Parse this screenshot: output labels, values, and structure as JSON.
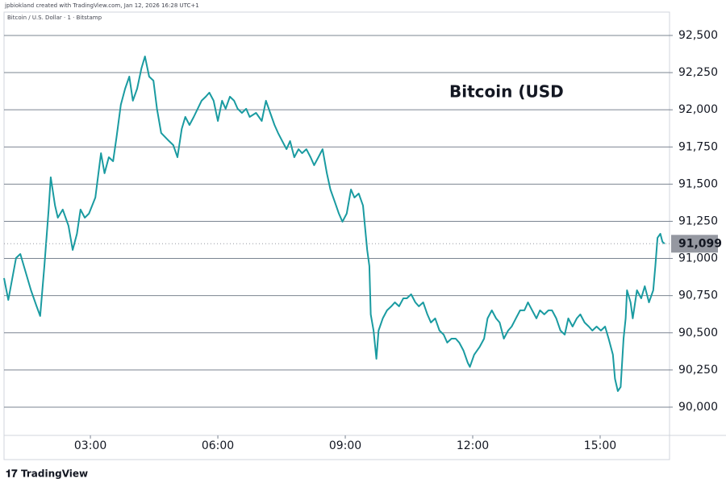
{
  "header": "jpbiokland created with TradingView.com, Jan 12, 2026 16:28 UTC+1",
  "symbol": "Bitcoin / U.S. Dollar · 1 · Bitstamp",
  "footer": "TradingView",
  "chart_data": {
    "type": "line",
    "title": "Bitcoin (USD",
    "color": "#1a9ba1",
    "grid": true,
    "xlim": [
      58,
      998
    ],
    "ylim": [
      89810,
      92657
    ],
    "xticks": [
      {
        "value": 180,
        "label": "03:00"
      },
      {
        "value": 360,
        "label": "06:00"
      },
      {
        "value": 540,
        "label": "09:00"
      },
      {
        "value": 720,
        "label": "12:00"
      },
      {
        "value": 900,
        "label": "15:00"
      }
    ],
    "yticks": [
      {
        "value": 90000,
        "label": "90,000"
      },
      {
        "value": 90250,
        "label": "90,250"
      },
      {
        "value": 90500,
        "label": "90,500"
      },
      {
        "value": 90750,
        "label": "90,750"
      },
      {
        "value": 91000,
        "label": "91,000"
      },
      {
        "value": 91250,
        "label": "91,250"
      },
      {
        "value": 91500,
        "label": "91,500"
      },
      {
        "value": 91750,
        "label": "91,750"
      },
      {
        "value": 92000,
        "label": "92,000"
      },
      {
        "value": 92250,
        "label": "92,250"
      },
      {
        "value": 92500,
        "label": "92,500"
      }
    ],
    "last_price": {
      "value": 91099,
      "label": "91,099"
    },
    "x": [
      58,
      64,
      75,
      81,
      86,
      96,
      104,
      109,
      115,
      121,
      124,
      130,
      134,
      141,
      149,
      155,
      161,
      166,
      172,
      178,
      187,
      195,
      200,
      206,
      212,
      217,
      223,
      229,
      235,
      240,
      246,
      252,
      257,
      263,
      269,
      274,
      280,
      291,
      297,
      303,
      309,
      314,
      320,
      326,
      337,
      343,
      348,
      354,
      360,
      366,
      371,
      377,
      383,
      388,
      394,
      400,
      405,
      414,
      422,
      428,
      434,
      440,
      445,
      451,
      457,
      462,
      468,
      474,
      479,
      485,
      491,
      496,
      502,
      508,
      514,
      519,
      525,
      531,
      536,
      542,
      548,
      553,
      559,
      565,
      571,
      574,
      576,
      580,
      584,
      587,
      593,
      599,
      605,
      610,
      616,
      622,
      627,
      633,
      639,
      644,
      650,
      656,
      661,
      667,
      673,
      679,
      684,
      690,
      696,
      701,
      707,
      713,
      716,
      722,
      730,
      736,
      741,
      747,
      753,
      758,
      764,
      770,
      775,
      781,
      787,
      793,
      798,
      804,
      810,
      815,
      821,
      827,
      832,
      838,
      844,
      850,
      855,
      861,
      867,
      872,
      878,
      884,
      889,
      895,
      901,
      907,
      912,
      918,
      921,
      925,
      929,
      933,
      936,
      938,
      943,
      946,
      952,
      958,
      963,
      969,
      975,
      978,
      981,
      985,
      988,
      991
    ],
    "series": [
      {
        "name": "Bitcoin (USD",
        "color": "#1a9ba1",
        "values": [
          90868,
          90721,
          91003,
          91030,
          90949,
          90786,
          90678,
          90613,
          90949,
          91329,
          91546,
          91356,
          91274,
          91329,
          91220,
          91057,
          91166,
          91329,
          91274,
          91302,
          91410,
          91708,
          91573,
          91681,
          91654,
          91817,
          92034,
          92142,
          92223,
          92061,
          92142,
          92278,
          92359,
          92223,
          92196,
          92007,
          91844,
          91790,
          91762,
          91681,
          91871,
          91952,
          91898,
          91952,
          92061,
          92088,
          92115,
          92061,
          91925,
          92061,
          92007,
          92088,
          92061,
          92007,
          91979,
          92007,
          91952,
          91979,
          91925,
          92061,
          91979,
          91898,
          91844,
          91790,
          91735,
          91790,
          91681,
          91735,
          91708,
          91735,
          91681,
          91627,
          91681,
          91735,
          91573,
          91464,
          91383,
          91302,
          91247,
          91302,
          91464,
          91410,
          91437,
          91356,
          91057,
          90949,
          90624,
          90515,
          90325,
          90515,
          90597,
          90651,
          90678,
          90705,
          90678,
          90732,
          90732,
          90759,
          90705,
          90678,
          90705,
          90624,
          90569,
          90597,
          90515,
          90488,
          90434,
          90461,
          90461,
          90434,
          90380,
          90298,
          90271,
          90353,
          90407,
          90461,
          90597,
          90651,
          90597,
          90569,
          90461,
          90515,
          90542,
          90597,
          90651,
          90651,
          90705,
          90651,
          90597,
          90651,
          90624,
          90651,
          90651,
          90597,
          90515,
          90488,
          90597,
          90542,
          90597,
          90624,
          90569,
          90542,
          90515,
          90542,
          90515,
          90542,
          90461,
          90353,
          90190,
          90108,
          90136,
          90461,
          90597,
          90786,
          90705,
          90597,
          90786,
          90732,
          90813,
          90705,
          90786,
          90949,
          91139,
          91166,
          91112,
          91099
        ]
      }
    ]
  }
}
